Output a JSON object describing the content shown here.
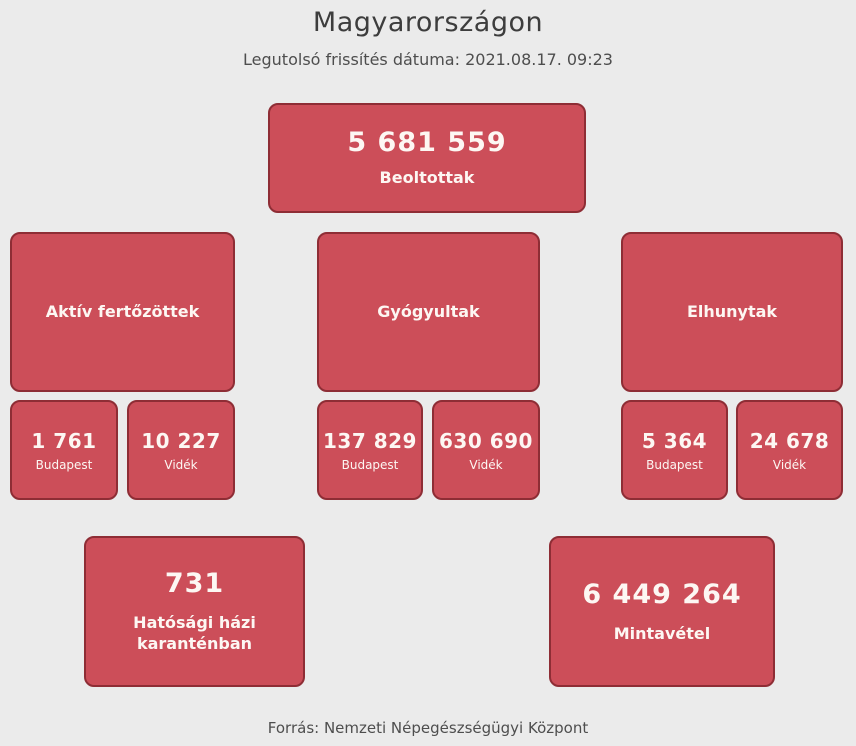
{
  "page": {
    "title": "Magyarországon",
    "subtitle": "Legutolsó frissítés dátuma: 2021.08.17. 09:23",
    "footer": "Forrás: Nemzeti Népegészségügyi Központ"
  },
  "colors": {
    "page_bg": "#ebebeb",
    "card_bg": "#cc4e59",
    "card_border": "#8e2d35",
    "card_text": "#fdf7f3",
    "title_text": "#3d3d3d",
    "muted_text": "#4e4e4e"
  },
  "cards": {
    "vaccinated": {
      "value": "5 681 559",
      "label": "Beoltottak"
    },
    "active": {
      "label": "Aktív fertőzöttek",
      "budapest": {
        "value": "1 761",
        "label": "Budapest"
      },
      "videk": {
        "value": "10 227",
        "label": "Vidék"
      }
    },
    "recovered": {
      "label": "Gyógyultak",
      "budapest": {
        "value": "137 829",
        "label": "Budapest"
      },
      "videk": {
        "value": "630 690",
        "label": "Vidék"
      }
    },
    "deceased": {
      "label": "Elhunytak",
      "budapest": {
        "value": "5 364",
        "label": "Budapest"
      },
      "videk": {
        "value": "24 678",
        "label": "Vidék"
      }
    },
    "quarantine": {
      "value": "731",
      "label": "Hatósági házi karanténban"
    },
    "samples": {
      "value": "6 449 264",
      "label": "Mintavétel"
    }
  }
}
